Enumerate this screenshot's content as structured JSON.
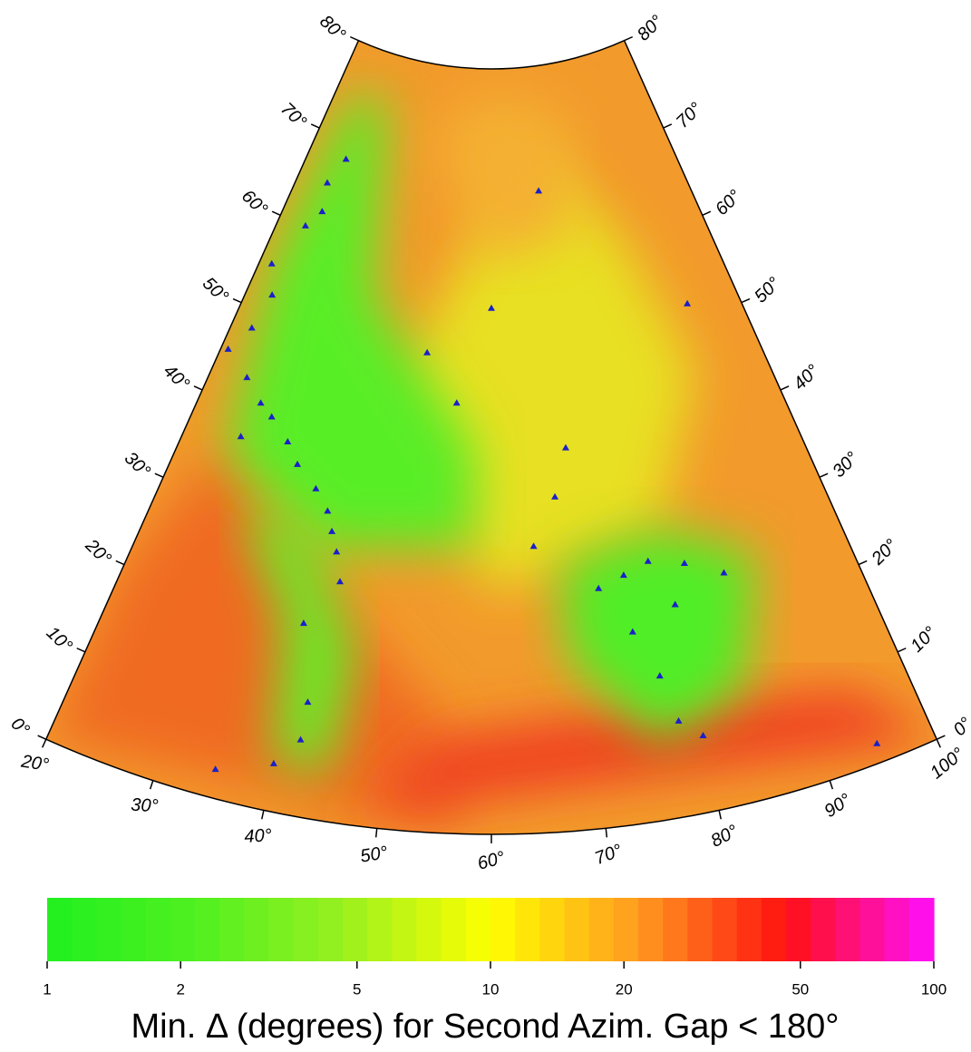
{
  "map": {
    "latlim": [
      0,
      80
    ],
    "lonlim": [
      20,
      100
    ],
    "lat_ticks": [
      {
        "value": 0,
        "label": "0°"
      },
      {
        "value": 10,
        "label": "10°"
      },
      {
        "value": 20,
        "label": "20°"
      },
      {
        "value": 30,
        "label": "30°"
      },
      {
        "value": 40,
        "label": "40°"
      },
      {
        "value": 50,
        "label": "50°"
      },
      {
        "value": 60,
        "label": "60°"
      },
      {
        "value": 70,
        "label": "70°"
      },
      {
        "value": 80,
        "label": "80°"
      }
    ],
    "lon_ticks": [
      {
        "value": 20,
        "label": "20°"
      },
      {
        "value": 30,
        "label": "30°"
      },
      {
        "value": 40,
        "label": "40°"
      },
      {
        "value": 50,
        "label": "50°"
      },
      {
        "value": 60,
        "label": "60°"
      },
      {
        "value": 70,
        "label": "70°"
      },
      {
        "value": 80,
        "label": "80°"
      },
      {
        "value": 90,
        "label": "90°"
      },
      {
        "value": 100,
        "label": "100°"
      }
    ]
  },
  "colorbar": {
    "range": [
      1,
      100
    ],
    "log": true,
    "ticks": [
      1,
      2,
      5,
      10,
      20,
      50,
      100
    ],
    "colors": [
      "#20f020",
      "#50f020",
      "#98f020",
      "#ffff00",
      "#ff9a20",
      "#ff1010",
      "#ff10ff"
    ],
    "label": "Min. Δ (degrees) for Second Azim. Gap < 180°"
  }
}
